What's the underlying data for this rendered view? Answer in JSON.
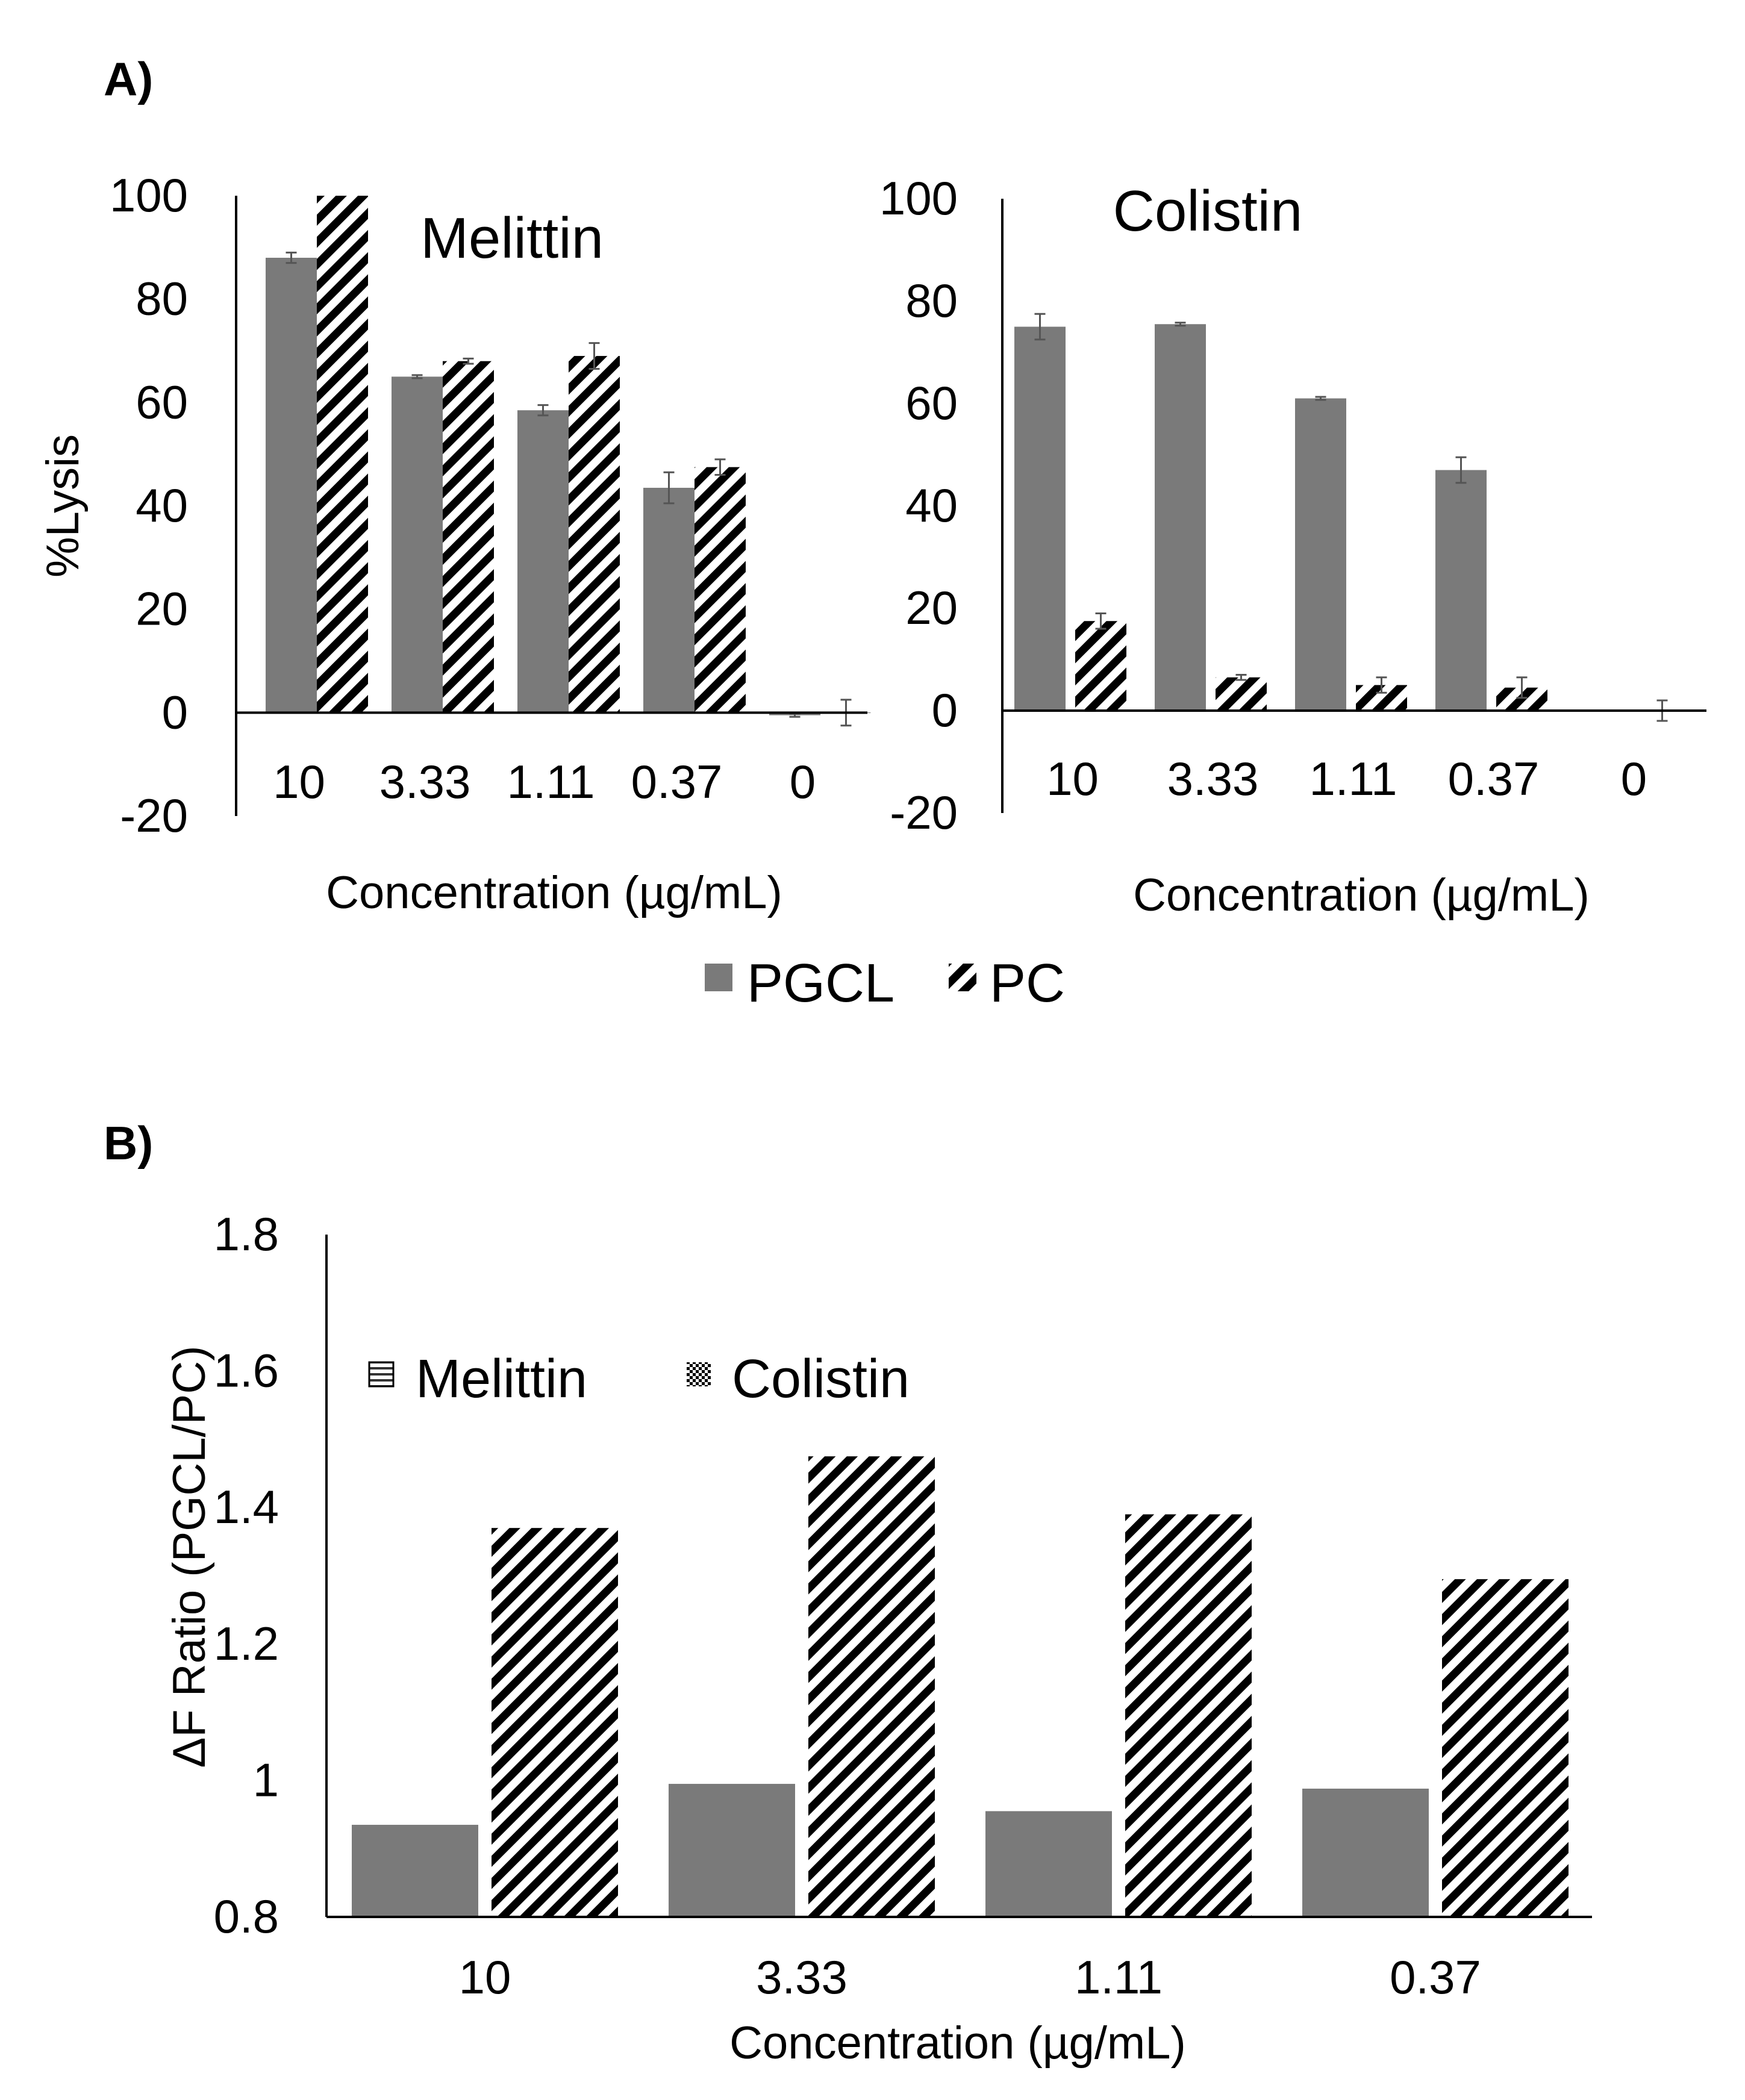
{
  "colors": {
    "pgcl_fill": "#7a7a7a",
    "stripe": "#000000",
    "background": "#ffffff",
    "axis": "#000000",
    "error_bar": "#555555"
  },
  "panel_a": {
    "label": "A)",
    "legend": [
      {
        "name": "PGCL",
        "style": "solid"
      },
      {
        "name": "PC",
        "style": "hatch"
      }
    ]
  },
  "panel_b": {
    "label": "B)"
  },
  "chart_data": [
    {
      "id": "melittin",
      "type": "bar",
      "title": "Melittin",
      "xlabel": "Concentration (µg/mL)",
      "ylabel": "%Lysis",
      "ylim": [
        -20,
        100
      ],
      "yticks": [
        100,
        80,
        60,
        40,
        20,
        0,
        -20
      ],
      "ytick_labels": [
        "100",
        "80",
        "60",
        "40",
        "20",
        "0",
        "-20"
      ],
      "categories": [
        "10",
        "3.33",
        "1.11",
        "0.37",
        "0"
      ],
      "grid": false,
      "series": [
        {
          "name": "PGCL",
          "style": "solid",
          "values": [
            88,
            65,
            58.5,
            43.5,
            -0.5
          ],
          "errors": [
            1,
            0.3,
            1,
            3,
            0.3
          ]
        },
        {
          "name": "PC",
          "style": "hatch",
          "values": [
            100,
            68,
            69,
            47.5,
            0
          ],
          "errors": [
            0,
            0.5,
            2.5,
            1.5,
            2.5
          ]
        }
      ]
    },
    {
      "id": "colistin",
      "type": "bar",
      "title": "Colistin",
      "xlabel": "Concentration (µg/mL)",
      "ylabel": "",
      "ylim": [
        -20,
        100
      ],
      "yticks": [
        100,
        80,
        60,
        40,
        20,
        0,
        -20
      ],
      "ytick_labels": [
        "100",
        "80",
        "60",
        "40",
        "20",
        "0",
        "-20"
      ],
      "categories": [
        "10",
        "3.33",
        "1.11",
        "0.37",
        "0"
      ],
      "grid": false,
      "series": [
        {
          "name": "PGCL",
          "style": "solid",
          "values": [
            75,
            75.5,
            61,
            47,
            0
          ],
          "errors": [
            2.5,
            0.3,
            0.3,
            2.5,
            0
          ]
        },
        {
          "name": "PC",
          "style": "hatch",
          "values": [
            17.5,
            6.5,
            5,
            4.5,
            0
          ],
          "errors": [
            1.5,
            0.5,
            1.5,
            2,
            2
          ]
        }
      ]
    },
    {
      "id": "ratio",
      "type": "bar",
      "title": "",
      "xlabel": "Concentration (µg/mL)",
      "ylabel": "ΔF Ratio (PGCL/PC)",
      "ylim": [
        0.8,
        1.8
      ],
      "yticks": [
        1.8,
        1.6,
        1.4,
        1.2,
        1,
        0.8
      ],
      "ytick_labels": [
        "1.8",
        "1.6",
        "1.4",
        "1.2",
        "1",
        "0.8"
      ],
      "categories": [
        "10",
        "3.33",
        "1.11",
        "0.37"
      ],
      "grid": false,
      "legend_position": "upper-left",
      "legend": [
        {
          "name": "Melittin",
          "icon": "horizontal-lines-icon"
        },
        {
          "name": "Colistin",
          "icon": "checker-icon"
        }
      ],
      "series": [
        {
          "name": "Melittin",
          "style": "solid",
          "values": [
            0.935,
            0.995,
            0.955,
            0.988
          ]
        },
        {
          "name": "Colistin",
          "style": "hatch",
          "values": [
            1.37,
            1.475,
            1.39,
            1.295
          ]
        }
      ]
    }
  ]
}
